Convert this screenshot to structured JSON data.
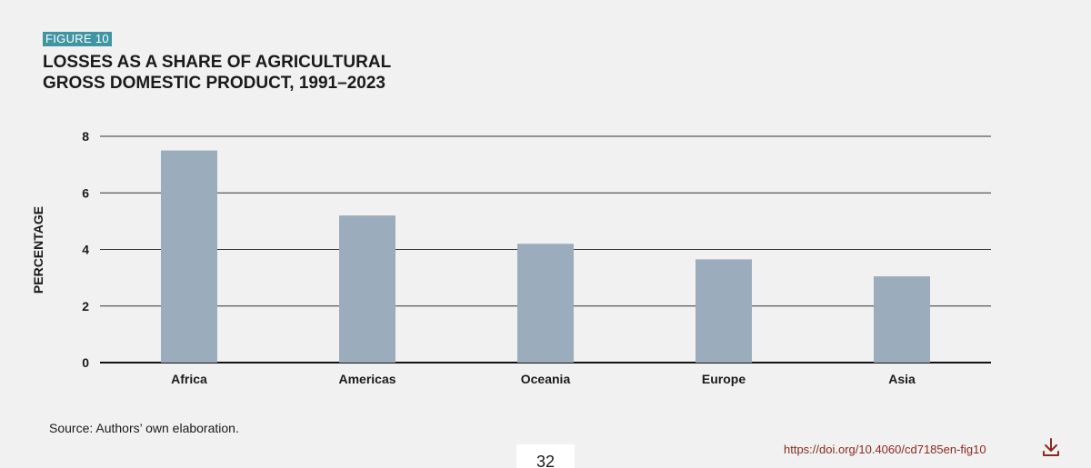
{
  "figure": {
    "tag": "FIGURE 10",
    "title_line1": "LOSSES AS A SHARE OF AGRICULTURAL",
    "title_line2": "GROSS DOMESTIC PRODUCT, 1991–2023"
  },
  "chart_data": {
    "type": "bar",
    "categories": [
      "Africa",
      "Americas",
      "Oceania",
      "Europe",
      "Asia"
    ],
    "values": [
      7.5,
      5.2,
      4.2,
      3.65,
      3.05
    ],
    "title": "LOSSES AS A SHARE OF AGRICULTURAL GROSS DOMESTIC PRODUCT, 1991–2023",
    "xlabel": "",
    "ylabel": "PERCENTAGE",
    "ylim": [
      0,
      8
    ],
    "yticks": [
      0,
      2,
      4,
      6,
      8
    ],
    "grid": true,
    "bar_color": "#9badbc",
    "grid_color": "#333333"
  },
  "footer": {
    "source": "Source: Authors’ own elaboration.",
    "page_number": "32",
    "doi": "https://doi.org/10.4060/cd7185en-fig10"
  },
  "icons": {
    "download": "download-icon"
  },
  "colors": {
    "tag_background": "#3f95a3",
    "link": "#8a2a1e",
    "background": "#f1f1f1"
  }
}
